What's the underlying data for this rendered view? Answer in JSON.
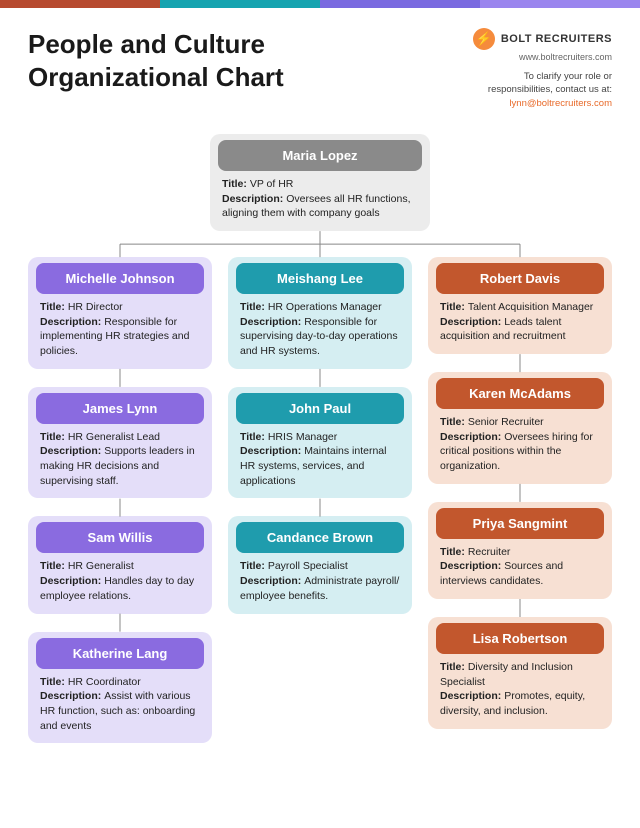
{
  "top_bar_colors": [
    "#b74a2f",
    "#16a4b0",
    "#7a6ae0",
    "#9a85ee"
  ],
  "header": {
    "title": "People and Culture Organizational Chart",
    "brand_name": "BOLT RECRUITERS",
    "brand_url": "www.boltrecruiters.com",
    "contact_line1": "To clarify your role or",
    "contact_line2": "responsibilities, contact us at:",
    "email": "lynn@boltrecruiters.com",
    "logo_bolt": "⚡"
  },
  "chart": {
    "type": "tree",
    "root": {
      "name": "Maria Lopez",
      "title": "VP of HR",
      "description": "Oversees all HR functions, aligning them with company goals",
      "bg_color": "#ececec",
      "bar_color": "#8a8a8a"
    },
    "columns": [
      {
        "bg_color": "#e4def9",
        "bar_color": "#8a6be0",
        "nodes": [
          {
            "name": "Michelle Johnson",
            "title": "HR Director",
            "description": "Responsible for implementing HR strategies and policies."
          },
          {
            "name": "James Lynn",
            "title": "HR Generalist Lead",
            "description": "Supports leaders in making HR decisions and supervising staff."
          },
          {
            "name": "Sam Willis",
            "title": "HR Generalist",
            "description": "Handles day to day employee relations."
          },
          {
            "name": "Katherine Lang",
            "title": "HR Coordinator",
            "description": "Assist with various HR function, such as: onboarding and events"
          }
        ]
      },
      {
        "bg_color": "#d5eef2",
        "bar_color": "#1f9cad",
        "nodes": [
          {
            "name": "Meishang Lee",
            "title": "HR Operations Manager",
            "description": "Responsible for supervising day-to-day operations and HR systems."
          },
          {
            "name": "John Paul",
            "title": "HRIS Manager",
            "description": "Maintains internal HR systems, services, and applications"
          },
          {
            "name": "Candance Brown",
            "title": "Payroll Specialist",
            "description": "Administrate payroll/ employee benefits."
          }
        ]
      },
      {
        "bg_color": "#f7e0d3",
        "bar_color": "#c2572d",
        "nodes": [
          {
            "name": "Robert Davis",
            "title": "Talent Acquisition Manager",
            "description": "Leads talent acquisition and recruitment"
          },
          {
            "name": "Karen McAdams",
            "title": "Senior Recruiter",
            "description": "Oversees hiring for critical positions within the organization."
          },
          {
            "name": "Priya Sangmint",
            "title": "Recruiter",
            "description": "Sources and interviews candidates."
          },
          {
            "name": "Lisa Robertson",
            "title": "Diversity and Inclusion Specialist",
            "description": "Promotes, equity, diversity, and inclusion."
          }
        ]
      }
    ],
    "wire_color": "#888"
  }
}
